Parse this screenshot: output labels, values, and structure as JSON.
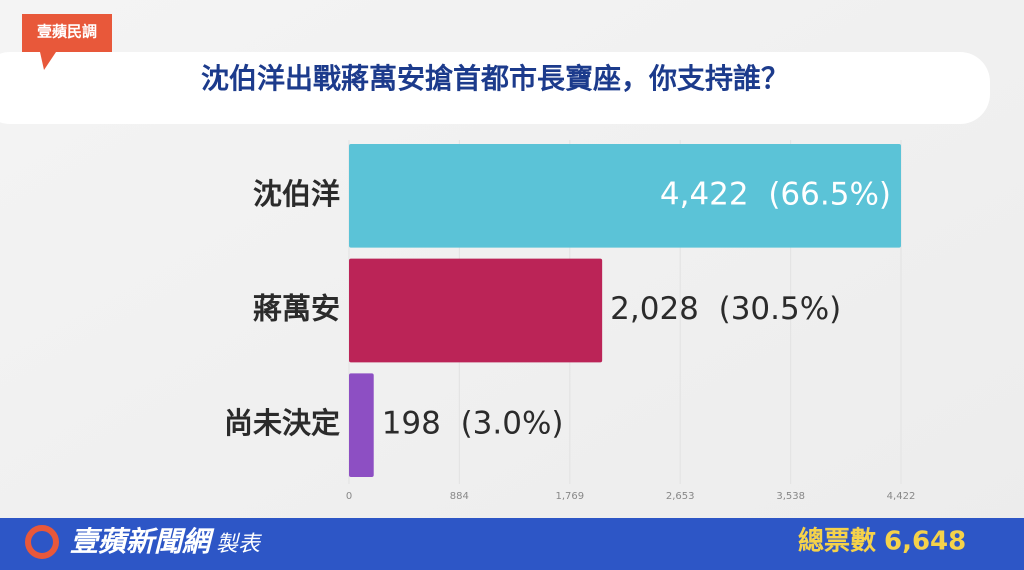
{
  "chart_data": {
    "type": "bar",
    "orientation": "horizontal",
    "badge": "壹蘋民調",
    "title": "沈伯洋出戰蔣萬安搶首都市長寶座，你支持誰？",
    "categories": [
      "沈伯洋",
      "蔣萬安",
      "尚未決定"
    ],
    "values": [
      4422,
      2028,
      198
    ],
    "value_labels": [
      "4,422  (66.5%)",
      "2,028  (30.5%)",
      "198  (3.0%)"
    ],
    "colors": [
      "#5bc3d7",
      "#bb2457",
      "#8d4fc3"
    ],
    "xlim": [
      0,
      4422
    ],
    "xticks": [
      0,
      884,
      {
        "value": 1769,
        "label": "1,769"
      },
      {
        "value": 2653,
        "label": "2,653"
      },
      {
        "value": 3538,
        "label": "3,538"
      },
      {
        "value": 4422,
        "label": "4,422"
      }
    ],
    "grid": true,
    "footer": {
      "brand": "壹蘋新聞網",
      "suffix": "製表",
      "total_text": "總票數",
      "total": {
        "value": 6648,
        "label": "6,648"
      }
    }
  }
}
